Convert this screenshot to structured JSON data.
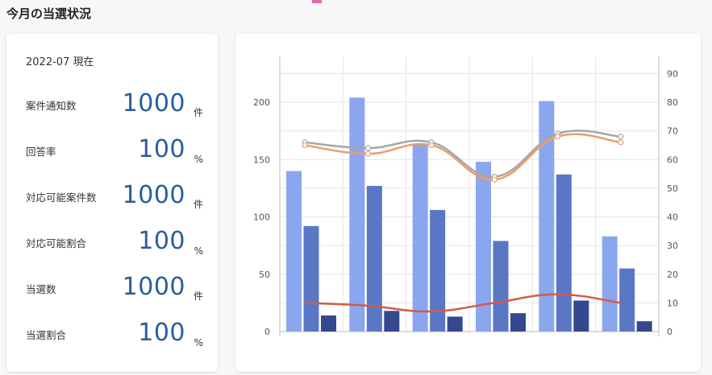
{
  "page": {
    "title": "今月の当選状況"
  },
  "summary": {
    "as_of": "2022-07 現在",
    "stats": [
      {
        "label": "案件通知数",
        "value": "1000",
        "unit": "件"
      },
      {
        "label": "回答率",
        "value": "100",
        "unit": "%"
      },
      {
        "label": "対応可能案件数",
        "value": "1000",
        "unit": "件"
      },
      {
        "label": "対応可能割合",
        "value": "100",
        "unit": "%"
      },
      {
        "label": "当選数",
        "value": "1000",
        "unit": "件"
      },
      {
        "label": "当選割合",
        "value": "100",
        "unit": "%"
      }
    ]
  },
  "colors": {
    "bar1": "#8aa6ee",
    "bar2": "#5977c4",
    "bar3": "#34478f",
    "line1": "#a6a6a6",
    "line2": "#ec9c6c",
    "line3": "#d45a45",
    "value_text": "#2a5d9f"
  },
  "chart_data": {
    "type": "bar",
    "title": "",
    "xlabel": "",
    "ylabel": "",
    "y2label": "",
    "ylim": [
      0,
      240
    ],
    "y2lim": [
      0,
      96
    ],
    "yticks": [
      0,
      50,
      100,
      150,
      200
    ],
    "y2ticks": [
      0,
      10,
      20,
      30,
      40,
      50,
      60,
      70,
      80,
      90
    ],
    "grid": true,
    "categories": [
      "",
      "",
      "",
      "",
      "",
      ""
    ],
    "bar_series": [
      {
        "values": [
          140,
          204,
          163,
          148,
          201,
          83
        ]
      },
      {
        "values": [
          92,
          127,
          106,
          79,
          137,
          55
        ]
      },
      {
        "values": [
          14,
          18,
          13,
          16,
          27,
          9
        ]
      }
    ],
    "line_series": [
      {
        "axis": "right",
        "values": [
          66,
          64,
          66,
          54,
          69,
          68
        ]
      },
      {
        "axis": "right",
        "values": [
          65,
          62,
          65,
          53,
          68,
          66
        ]
      },
      {
        "axis": "right",
        "values": [
          10,
          9,
          7,
          10,
          13,
          10
        ]
      }
    ]
  }
}
